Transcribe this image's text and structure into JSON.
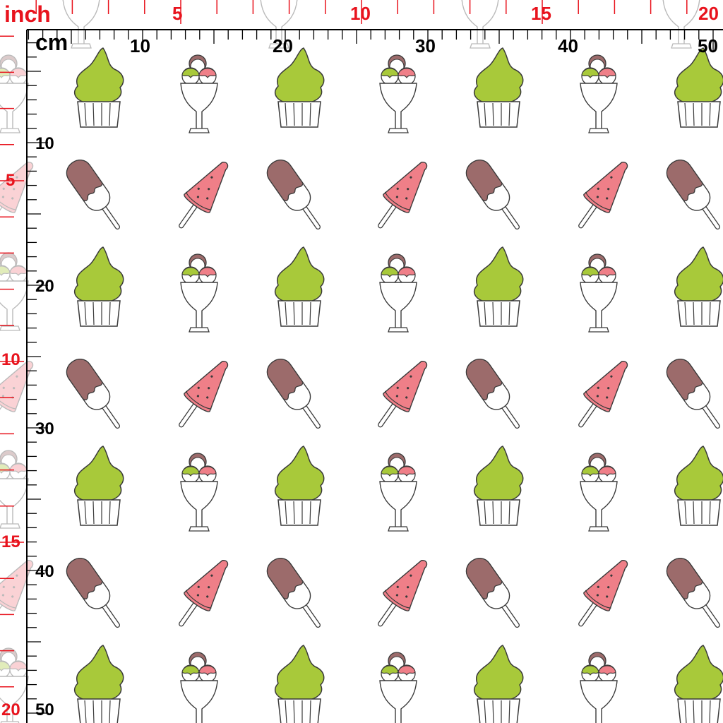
{
  "ruler": {
    "inch_unit": "inch",
    "cm_unit": "cm",
    "inch_top_ticks": [
      "5",
      "10",
      "15",
      "20"
    ],
    "cm_top_ticks": [
      "10",
      "20",
      "30",
      "40",
      "50"
    ],
    "inch_left_ticks": [
      "5",
      "10",
      "15",
      "20"
    ],
    "cm_left_ticks": [
      "10",
      "20",
      "30",
      "40",
      "50"
    ]
  },
  "colors": {
    "inch_ruler": "#e8131d",
    "cm_ruler": "#000000",
    "fabric_background": "#ffffff",
    "cupcake_frosting": "#a8c93a",
    "chocolate_coating": "#9c6b6b",
    "watermelon_flesh": "#ef7f88",
    "outline": "#3a3a3a"
  },
  "pattern": {
    "motifs": [
      "cupcake-icon",
      "ice-cream-sundae-icon",
      "chocolate-popsicle-icon",
      "watermelon-popsicle-icon"
    ]
  }
}
